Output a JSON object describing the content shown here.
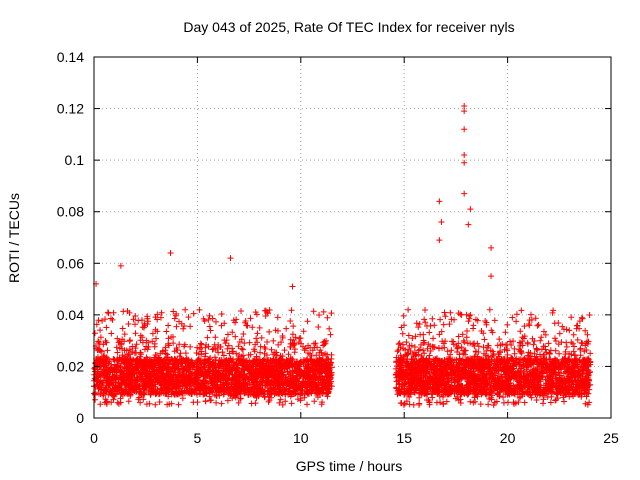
{
  "chart_data": {
    "type": "scatter",
    "title": "Day 043 of 2025, Rate Of TEC Index for receiver nyls",
    "xlabel": "GPS time / hours",
    "ylabel": "ROTI / TECUs",
    "xlim": [
      0,
      25
    ],
    "ylim": [
      0,
      0.14
    ],
    "xticks": [
      0,
      5,
      10,
      15,
      20,
      25
    ],
    "xtick_labels": [
      "0",
      "5",
      "10",
      "15",
      "20",
      "25"
    ],
    "yticks": [
      0,
      0.02,
      0.04,
      0.06,
      0.08,
      0.1,
      0.12,
      0.14
    ],
    "ytick_labels": [
      "0",
      "0.02",
      "0.04",
      "0.06",
      "0.08",
      "0.1",
      "0.12",
      "0.14"
    ],
    "grid": true,
    "marker": "+",
    "color": "#ff0000",
    "coverage_hours": [
      [
        0,
        11.5
      ],
      [
        14.6,
        24
      ]
    ],
    "data_gap_hours": [
      11.5,
      14.6
    ],
    "typical_range": [
      0.005,
      0.03
    ],
    "notable_points": [
      {
        "x": 0.1,
        "y": 0.052
      },
      {
        "x": 1.3,
        "y": 0.059
      },
      {
        "x": 3.7,
        "y": 0.064
      },
      {
        "x": 6.6,
        "y": 0.062
      },
      {
        "x": 9.6,
        "y": 0.051
      },
      {
        "x": 16.7,
        "y": 0.084
      },
      {
        "x": 16.8,
        "y": 0.076
      },
      {
        "x": 16.7,
        "y": 0.069
      },
      {
        "x": 17.9,
        "y": 0.121
      },
      {
        "x": 17.9,
        "y": 0.119
      },
      {
        "x": 17.9,
        "y": 0.112
      },
      {
        "x": 17.9,
        "y": 0.102
      },
      {
        "x": 17.9,
        "y": 0.099
      },
      {
        "x": 17.9,
        "y": 0.087
      },
      {
        "x": 18.2,
        "y": 0.081
      },
      {
        "x": 18.1,
        "y": 0.075
      },
      {
        "x": 19.2,
        "y": 0.066
      },
      {
        "x": 19.2,
        "y": 0.055
      }
    ]
  }
}
